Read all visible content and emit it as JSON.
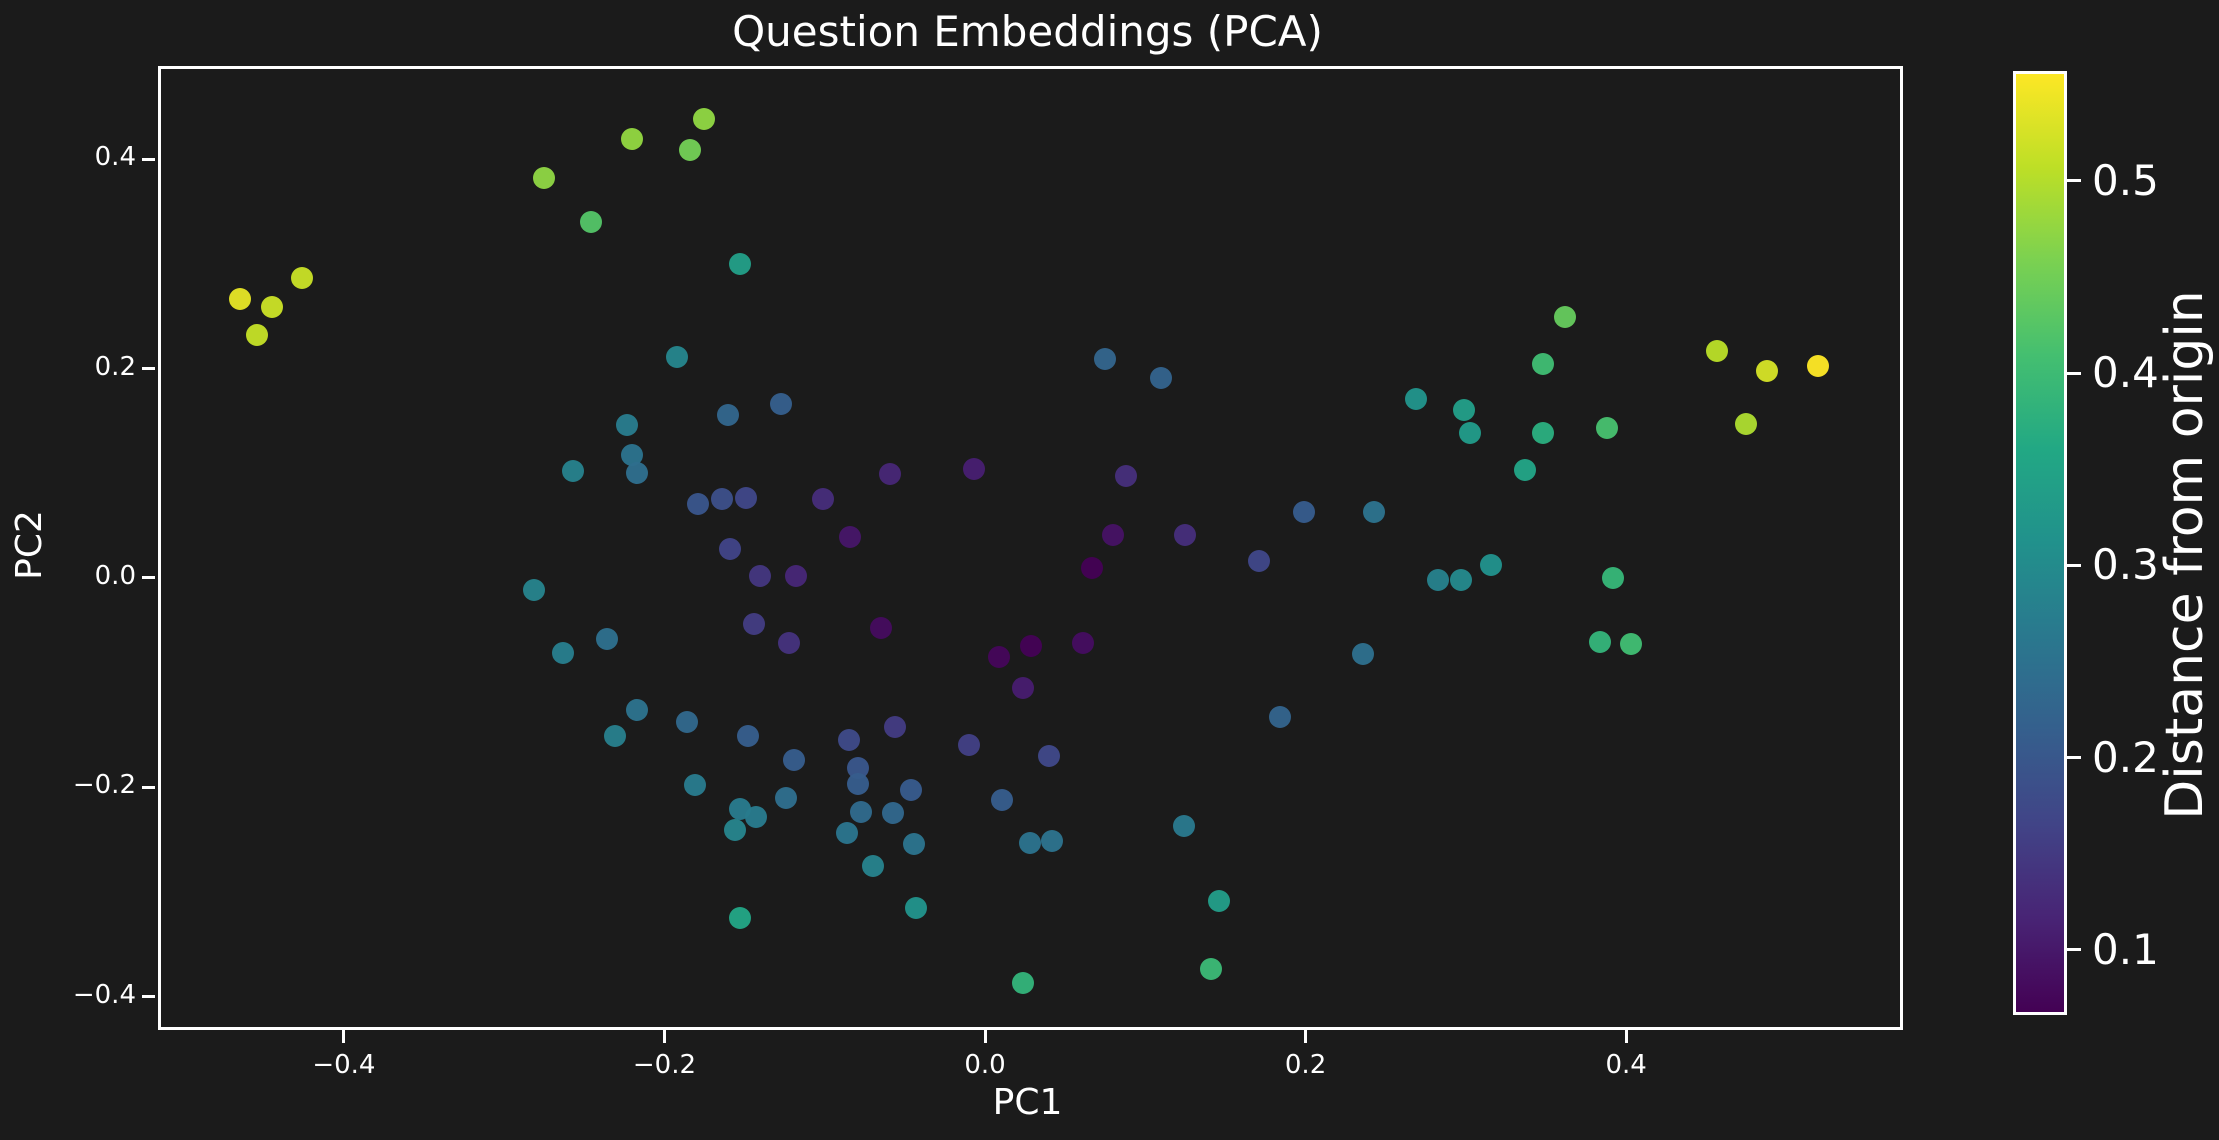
{
  "figure": {
    "title": "Question Embeddings (PCA)",
    "background": "#1b1b1b",
    "text_color": "#ffffff"
  },
  "chart_data": {
    "type": "scatter",
    "title": "Question Embeddings (PCA)",
    "xlabel": "PC1",
    "ylabel": "PC2",
    "xlim": [
      -0.516,
      0.569
    ],
    "ylim": [
      -0.426,
      0.489
    ],
    "grid": false,
    "x_ticks": [
      -0.4,
      -0.2,
      0.0,
      0.2,
      0.4
    ],
    "x_tick_labels": [
      "−0.4",
      "−0.2",
      "0.0",
      "0.2",
      "0.4"
    ],
    "y_ticks": [
      0.4,
      0.2,
      0.0,
      -0.2,
      -0.4
    ],
    "y_tick_labels": [
      "0.4",
      "0.2",
      "0.0",
      "−0.2",
      "−0.4"
    ],
    "colormap": "viridis",
    "color_encoding": "distance_from_origin = sqrt(x^2 + y^2)",
    "colorbar": {
      "label": "Distance from origin",
      "ticks": [
        0.5,
        0.4,
        0.3,
        0.2,
        0.1
      ],
      "tick_labels": [
        "0.5",
        "0.4",
        "0.3",
        "0.2",
        "0.1"
      ]
    },
    "points": [
      [
        -0.222,
        0.422
      ],
      [
        -0.277,
        0.385
      ],
      [
        -0.248,
        0.343
      ],
      [
        -0.428,
        0.289
      ],
      [
        -0.467,
        0.269
      ],
      [
        -0.447,
        0.262
      ],
      [
        -0.456,
        0.235
      ],
      [
        -0.194,
        0.214
      ],
      [
        -0.225,
        0.149
      ],
      [
        -0.222,
        0.12
      ],
      [
        -0.219,
        0.103
      ],
      [
        -0.259,
        0.105
      ],
      [
        -0.177,
        0.441
      ],
      [
        -0.186,
        0.412
      ],
      [
        -0.155,
        0.303
      ],
      [
        0.073,
        0.212
      ],
      [
        0.108,
        0.194
      ],
      [
        -0.129,
        0.169
      ],
      [
        -0.162,
        0.159
      ],
      [
        -0.061,
        0.102
      ],
      [
        -0.009,
        0.107
      ],
      [
        0.086,
        0.1
      ],
      [
        -0.181,
        0.074
      ],
      [
        -0.166,
        0.078
      ],
      [
        -0.151,
        0.079
      ],
      [
        -0.103,
        0.078
      ],
      [
        -0.086,
        0.042
      ],
      [
        -0.161,
        0.031
      ],
      [
        -0.142,
        0.005
      ],
      [
        -0.12,
        0.005
      ],
      [
        0.078,
        0.044
      ],
      [
        0.123,
        0.044
      ],
      [
        0.065,
        0.012
      ],
      [
        0.36,
        0.252
      ],
      [
        0.346,
        0.207
      ],
      [
        0.267,
        0.174
      ],
      [
        0.297,
        0.163
      ],
      [
        0.301,
        0.141
      ],
      [
        0.346,
        0.141
      ],
      [
        0.386,
        0.146
      ],
      [
        0.335,
        0.106
      ],
      [
        0.197,
        0.066
      ],
      [
        0.241,
        0.066
      ],
      [
        0.169,
        0.019
      ],
      [
        0.314,
        0.015
      ],
      [
        0.455,
        0.22
      ],
      [
        0.486,
        0.201
      ],
      [
        0.518,
        0.205
      ],
      [
        0.473,
        0.15
      ],
      [
        -0.283,
        -0.009
      ],
      [
        -0.265,
        -0.069
      ],
      [
        -0.238,
        -0.055
      ],
      [
        -0.219,
        -0.123
      ],
      [
        -0.233,
        -0.148
      ],
      [
        -0.146,
        -0.041
      ],
      [
        -0.124,
        -0.059
      ],
      [
        -0.067,
        -0.045
      ],
      [
        0.007,
        -0.073
      ],
      [
        0.027,
        -0.062
      ],
      [
        0.059,
        -0.059
      ],
      [
        0.022,
        -0.102
      ],
      [
        -0.188,
        -0.135
      ],
      [
        -0.15,
        -0.148
      ],
      [
        -0.058,
        -0.139
      ],
      [
        -0.087,
        -0.152
      ],
      [
        -0.012,
        -0.157
      ],
      [
        0.038,
        -0.167
      ],
      [
        -0.121,
        -0.171
      ],
      [
        -0.081,
        -0.179
      ],
      [
        -0.081,
        -0.194
      ],
      [
        -0.183,
        -0.195
      ],
      [
        -0.126,
        -0.207
      ],
      [
        -0.048,
        -0.2
      ],
      [
        -0.155,
        -0.218
      ],
      [
        -0.145,
        -0.225
      ],
      [
        -0.079,
        -0.221
      ],
      [
        -0.059,
        -0.222
      ],
      [
        -0.158,
        -0.238
      ],
      [
        -0.088,
        -0.241
      ],
      [
        -0.046,
        -0.251
      ],
      [
        0.009,
        -0.209
      ],
      [
        0.026,
        -0.25
      ],
      [
        0.04,
        -0.248
      ],
      [
        0.122,
        -0.234
      ],
      [
        -0.072,
        -0.272
      ],
      [
        -0.045,
        -0.312
      ],
      [
        -0.155,
        -0.322
      ],
      [
        0.022,
        -0.384
      ],
      [
        0.281,
        0.001
      ],
      [
        0.295,
        0.001
      ],
      [
        0.39,
        0.003
      ],
      [
        0.234,
        -0.07
      ],
      [
        0.182,
        -0.13
      ],
      [
        0.382,
        -0.058
      ],
      [
        0.401,
        -0.06
      ],
      [
        0.144,
        -0.306
      ],
      [
        0.139,
        -0.371
      ]
    ]
  },
  "colors": {
    "background": "#1b1b1b",
    "text": "#ffffff",
    "spine": "#ffffff",
    "viridis_stops": [
      "#440154",
      "#482475",
      "#414487",
      "#355f8d",
      "#2a788e",
      "#21918c",
      "#22a884",
      "#44bf70",
      "#7ad151",
      "#bddf26",
      "#fde725"
    ]
  }
}
